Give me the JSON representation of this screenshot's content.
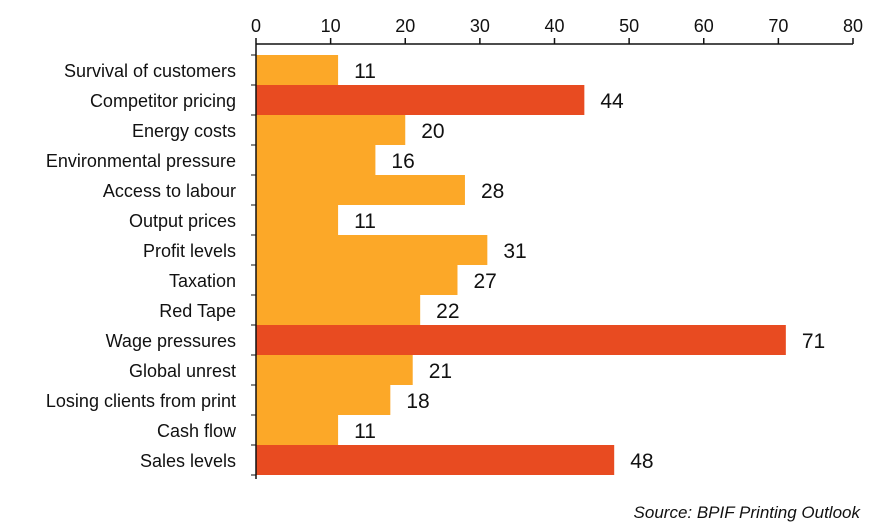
{
  "chart_data": {
    "type": "bar",
    "orientation": "horizontal",
    "categories": [
      "Survival of customers",
      "Competitor pricing",
      "Energy costs",
      "Environmental pressure",
      "Access to labour",
      "Output prices",
      "Profit levels",
      "Taxation",
      "Red Tape",
      "Wage pressures",
      "Global unrest",
      "Losing clients from print",
      "Cash flow",
      "Sales levels"
    ],
    "values": [
      11,
      44,
      20,
      16,
      28,
      11,
      31,
      27,
      22,
      71,
      21,
      18,
      11,
      48
    ],
    "highlighted": [
      false,
      true,
      false,
      false,
      false,
      false,
      false,
      false,
      false,
      true,
      false,
      false,
      false,
      true
    ],
    "xlim": [
      0,
      80
    ],
    "xticks": [
      0,
      10,
      20,
      30,
      40,
      50,
      60,
      70,
      80
    ],
    "axis_position": "top",
    "grid": false,
    "colors": {
      "default": "#FCA828",
      "highlight": "#E84B21"
    }
  },
  "source": "Source: BPIF Printing Outlook"
}
